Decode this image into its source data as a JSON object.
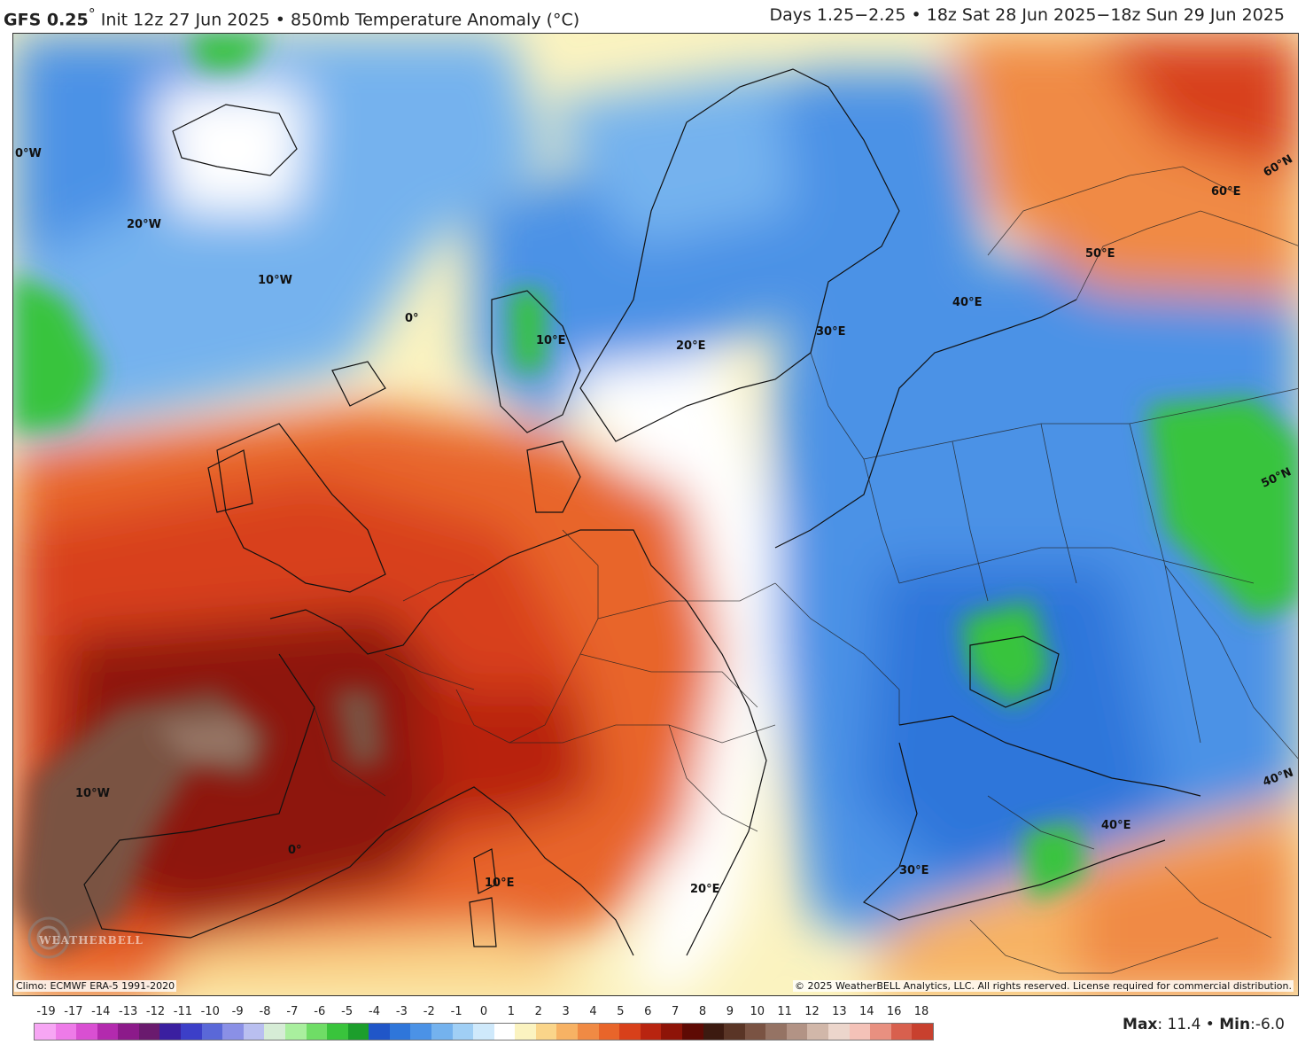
{
  "header": {
    "model": "GFS 0.25",
    "degree": "°",
    "init": "Init 12z 27 Jun 2025",
    "sep": "•",
    "product": "850mb Temperature Anomaly (°C)",
    "valid": "Days 1.25−2.25 • 18z Sat 28 Jun 2025−18z Sun 29 Jun 2025"
  },
  "graticule_labels": [
    "0°W",
    "20°W",
    "10°W",
    "0°",
    "10°E",
    "20°E",
    "30°E",
    "40°E",
    "50°E",
    "60°E",
    "60°N",
    "50°N",
    "40°N",
    "10°W",
    "0°",
    "10°E",
    "20°E",
    "30°E",
    "40°E"
  ],
  "footer": {
    "climo": "Climo: ECMWF ERA-5 1991-2020",
    "copyright": "© 2025 WeatherBELL Analytics, LLC. All rights reserved. License required for commercial distribution.",
    "logo_text": "WEATHERBELL"
  },
  "colorbar": {
    "tick_labels": [
      "-19",
      "-17",
      "-14",
      "-13",
      "-12",
      "-11",
      "-10",
      "-9",
      "-8",
      "-7",
      "-6",
      "-5",
      "-4",
      "-3",
      "-2",
      "-1",
      "0",
      "1",
      "2",
      "3",
      "4",
      "5",
      "6",
      "7",
      "8",
      "9",
      "10",
      "11",
      "12",
      "13",
      "14",
      "16",
      "18"
    ],
    "colors": [
      "#f7a6f4",
      "#ee7be8",
      "#d94fd2",
      "#b32aae",
      "#8c1a8a",
      "#6a1a6e",
      "#3a1fa0",
      "#3c3fc8",
      "#5a68d8",
      "#8a90e6",
      "#b9bff0",
      "#d6ecd6",
      "#a9ef9e",
      "#6fdd66",
      "#39c43c",
      "#1c9e2c",
      "#2056c8",
      "#2f76da",
      "#4b92e6",
      "#74b2ee",
      "#a0cff5",
      "#cfe9fb",
      "#ffffff",
      "#fbf3c0",
      "#fad58a",
      "#f7b264",
      "#f08a44",
      "#e8652a",
      "#d8401a",
      "#b82410",
      "#8e1408",
      "#5e0a04",
      "#3c1a10",
      "#5a3526",
      "#7a5343",
      "#957364",
      "#b29385",
      "#d1b7a9",
      "#ecd6cc",
      "#f4c2b8",
      "#e89080",
      "#d8604e",
      "#c8402e"
    ]
  },
  "stats": {
    "max_label": "Max",
    "max_value": ": 11.4",
    "sep": " • ",
    "min_label": "Min",
    "min_value": ":-6.0"
  },
  "colors": {
    "cold": "#2f76da",
    "warm": "#d8401a",
    "hot": "#8e1408",
    "extreme": "#7a5343"
  }
}
